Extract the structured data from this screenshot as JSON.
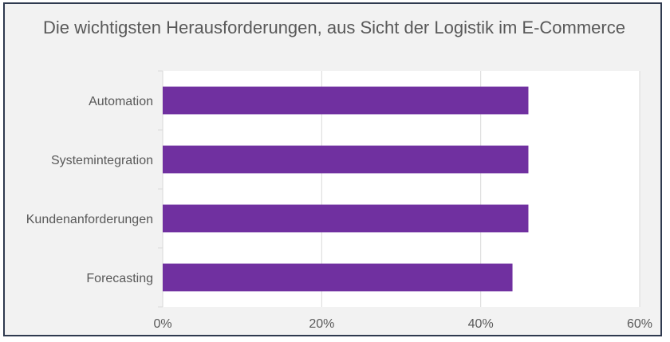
{
  "chart_data": {
    "type": "bar",
    "orientation": "horizontal",
    "title": "Die wichtigsten Herausforderungen, aus Sicht der Logistik im E-Commerce",
    "categories": [
      "Automation",
      "Systemintegration",
      "Kundenanforderungen",
      "Forecasting"
    ],
    "values": [
      46,
      46,
      46,
      44
    ],
    "value_unit": "%",
    "xlim": [
      0,
      60
    ],
    "xticks": [
      "0%",
      "20%",
      "40%",
      "60%"
    ],
    "xtick_values": [
      0,
      20,
      40,
      60
    ],
    "grid": "vertical",
    "legend": "none",
    "colors": {
      "bar": "#7030a0",
      "plot_background": "#ffffff",
      "chart_background": "#f2f2f2",
      "grid": "#d9d9d9",
      "border": "#2f3a4f"
    }
  }
}
